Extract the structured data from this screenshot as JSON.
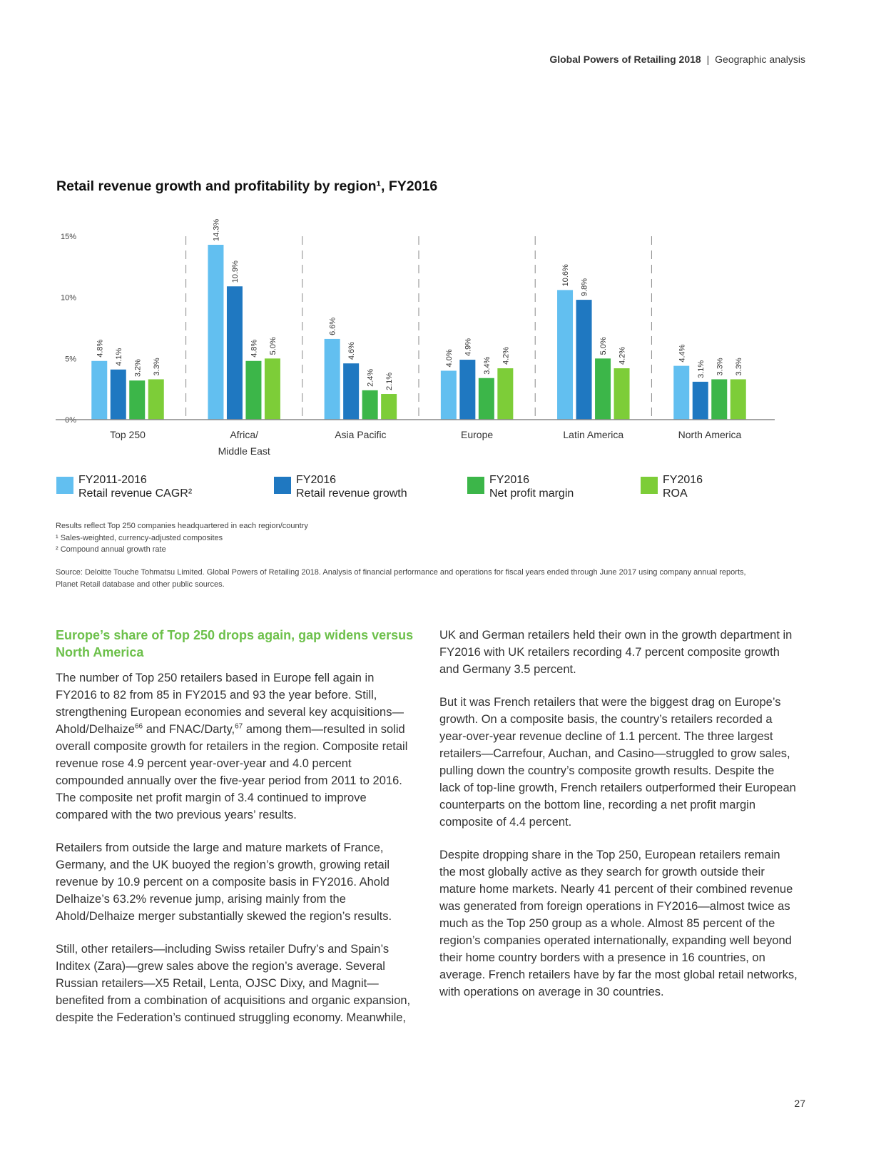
{
  "header": {
    "title": "Global Powers of Retailing 2018",
    "separator": "|",
    "section": "Geographic analysis"
  },
  "chart_data": {
    "type": "bar",
    "title": "Retail revenue growth and profitability by region¹, FY2016",
    "categories": [
      "Top 250",
      "Africa/\nMiddle East",
      "Asia Pacific",
      "Europe",
      "Latin America",
      "North America"
    ],
    "series": [
      {
        "name": "FY2011-2016\nRetail revenue CAGR²",
        "color": "#62bff0",
        "values": [
          4.8,
          14.3,
          6.6,
          4.0,
          10.6,
          4.4
        ],
        "value_labels": [
          "4.8%",
          "14.3%",
          "6.6%",
          "4.0%",
          "10.6%",
          "4.4%"
        ]
      },
      {
        "name": "FY2016\nRetail revenue growth",
        "color": "#1f78c1",
        "values": [
          4.1,
          10.9,
          4.6,
          4.9,
          9.8,
          3.1
        ],
        "value_labels": [
          "4.1%",
          "10.9%",
          "4.6%",
          "4.9%",
          "9.8%",
          "3.1%"
        ]
      },
      {
        "name": "FY2016\nNet profit margin",
        "color": "#3cb649",
        "values": [
          3.2,
          4.8,
          2.4,
          3.4,
          5.0,
          3.3
        ],
        "value_labels": [
          "3.2%",
          "4.8%",
          "2.4%",
          "3.4%",
          "5.0%",
          "3.3%"
        ]
      },
      {
        "name": "FY2016\nROA",
        "color": "#7dcd38",
        "values": [
          3.3,
          5.0,
          2.1,
          4.2,
          4.2,
          3.3
        ],
        "value_labels": [
          "3.3%",
          "5.0%",
          "2.1%",
          "4.2%",
          "4.2%",
          "3.3%"
        ]
      }
    ],
    "ylim": [
      0,
      15
    ],
    "yticks": [
      {
        "value": 0,
        "label": "0%"
      },
      {
        "value": 5,
        "label": "5%"
      },
      {
        "value": 10,
        "label": "10%"
      },
      {
        "value": 15,
        "label": "15%"
      }
    ]
  },
  "notes": [
    "Results reflect Top 250 companies headquartered in each region/country",
    "¹ Sales-weighted, currency-adjusted composites",
    "² Compound annual growth rate"
  ],
  "source": "Source: Deloitte Touche Tohmatsu Limited. Global Powers of Retailing 2018. Analysis of financial performance and operations for fiscal years ended through June 2017 using company annual reports, Planet Retail database and other public sources.",
  "article": {
    "heading": "Europe’s share of Top 250 drops again, gap widens versus North America",
    "p1": {
      "before": "The number of Top 250 retailers based in Europe fell again in FY2016 to 82 from 85 in FY2015 and 93 the year before. Still, strengthening European economies and several key acquisitions—Ahold/Delhaize",
      "sup1": "66",
      "middle": " and FNAC/Darty,",
      "sup2": "67",
      "after": " among them—resulted in solid overall composite growth for retailers in the region. Composite retail revenue rose 4.9 percent year-over-year and 4.0 percent compounded annually over the five-year period from 2011 to 2016. The composite net profit margin of 3.4 continued to improve compared with the two previous years’ results."
    },
    "paragraphs": [
      "Retailers from outside the large and mature markets of France, Germany, and the UK buoyed the region’s growth, growing retail revenue by 10.9 percent on a composite basis in FY2016. Ahold Delhaize’s 63.2% revenue jump, arising mainly from the Ahold/Delhaize merger substantially skewed the region’s results.",
      "Still, other retailers—including Swiss retailer Dufry’s and Spain’s Inditex (Zara)—grew sales above the region’s average. Several Russian retailers—X5 Retail, Lenta, OJSC Dixy, and Magnit—benefited from a combination of acquisitions and organic expansion, despite the Federation’s continued struggling economy. Meanwhile, UK and German retailers held their own in the growth department in FY2016 with UK retailers recording 4.7 percent composite growth and Germany 3.5 percent.",
      "But it was French retailers that were the biggest drag on Europe’s growth. On a composite basis, the country’s retailers recorded a year-over-year revenue decline of 1.1 percent. The three largest retailers—Carrefour, Auchan, and Casino—struggled to grow sales, pulling down the country’s composite growth results. Despite the lack of top-line growth, French retailers outperformed their European counterparts on the bottom line, recording a net profit margin composite of 4.4 percent.",
      "Despite dropping share in the Top 250, European retailers remain the most globally active as they search for growth outside their mature home markets. Nearly 41 percent of their combined revenue was generated from foreign operations in FY2016—almost twice as much as the Top 250 group as a whole. Almost 85 percent of the region’s companies operated internationally, expanding well beyond their home country borders with a presence in 16 countries, on average. French retailers have by far the most global retail networks, with operations on average in 30 countries."
    ]
  },
  "page_number": "27"
}
